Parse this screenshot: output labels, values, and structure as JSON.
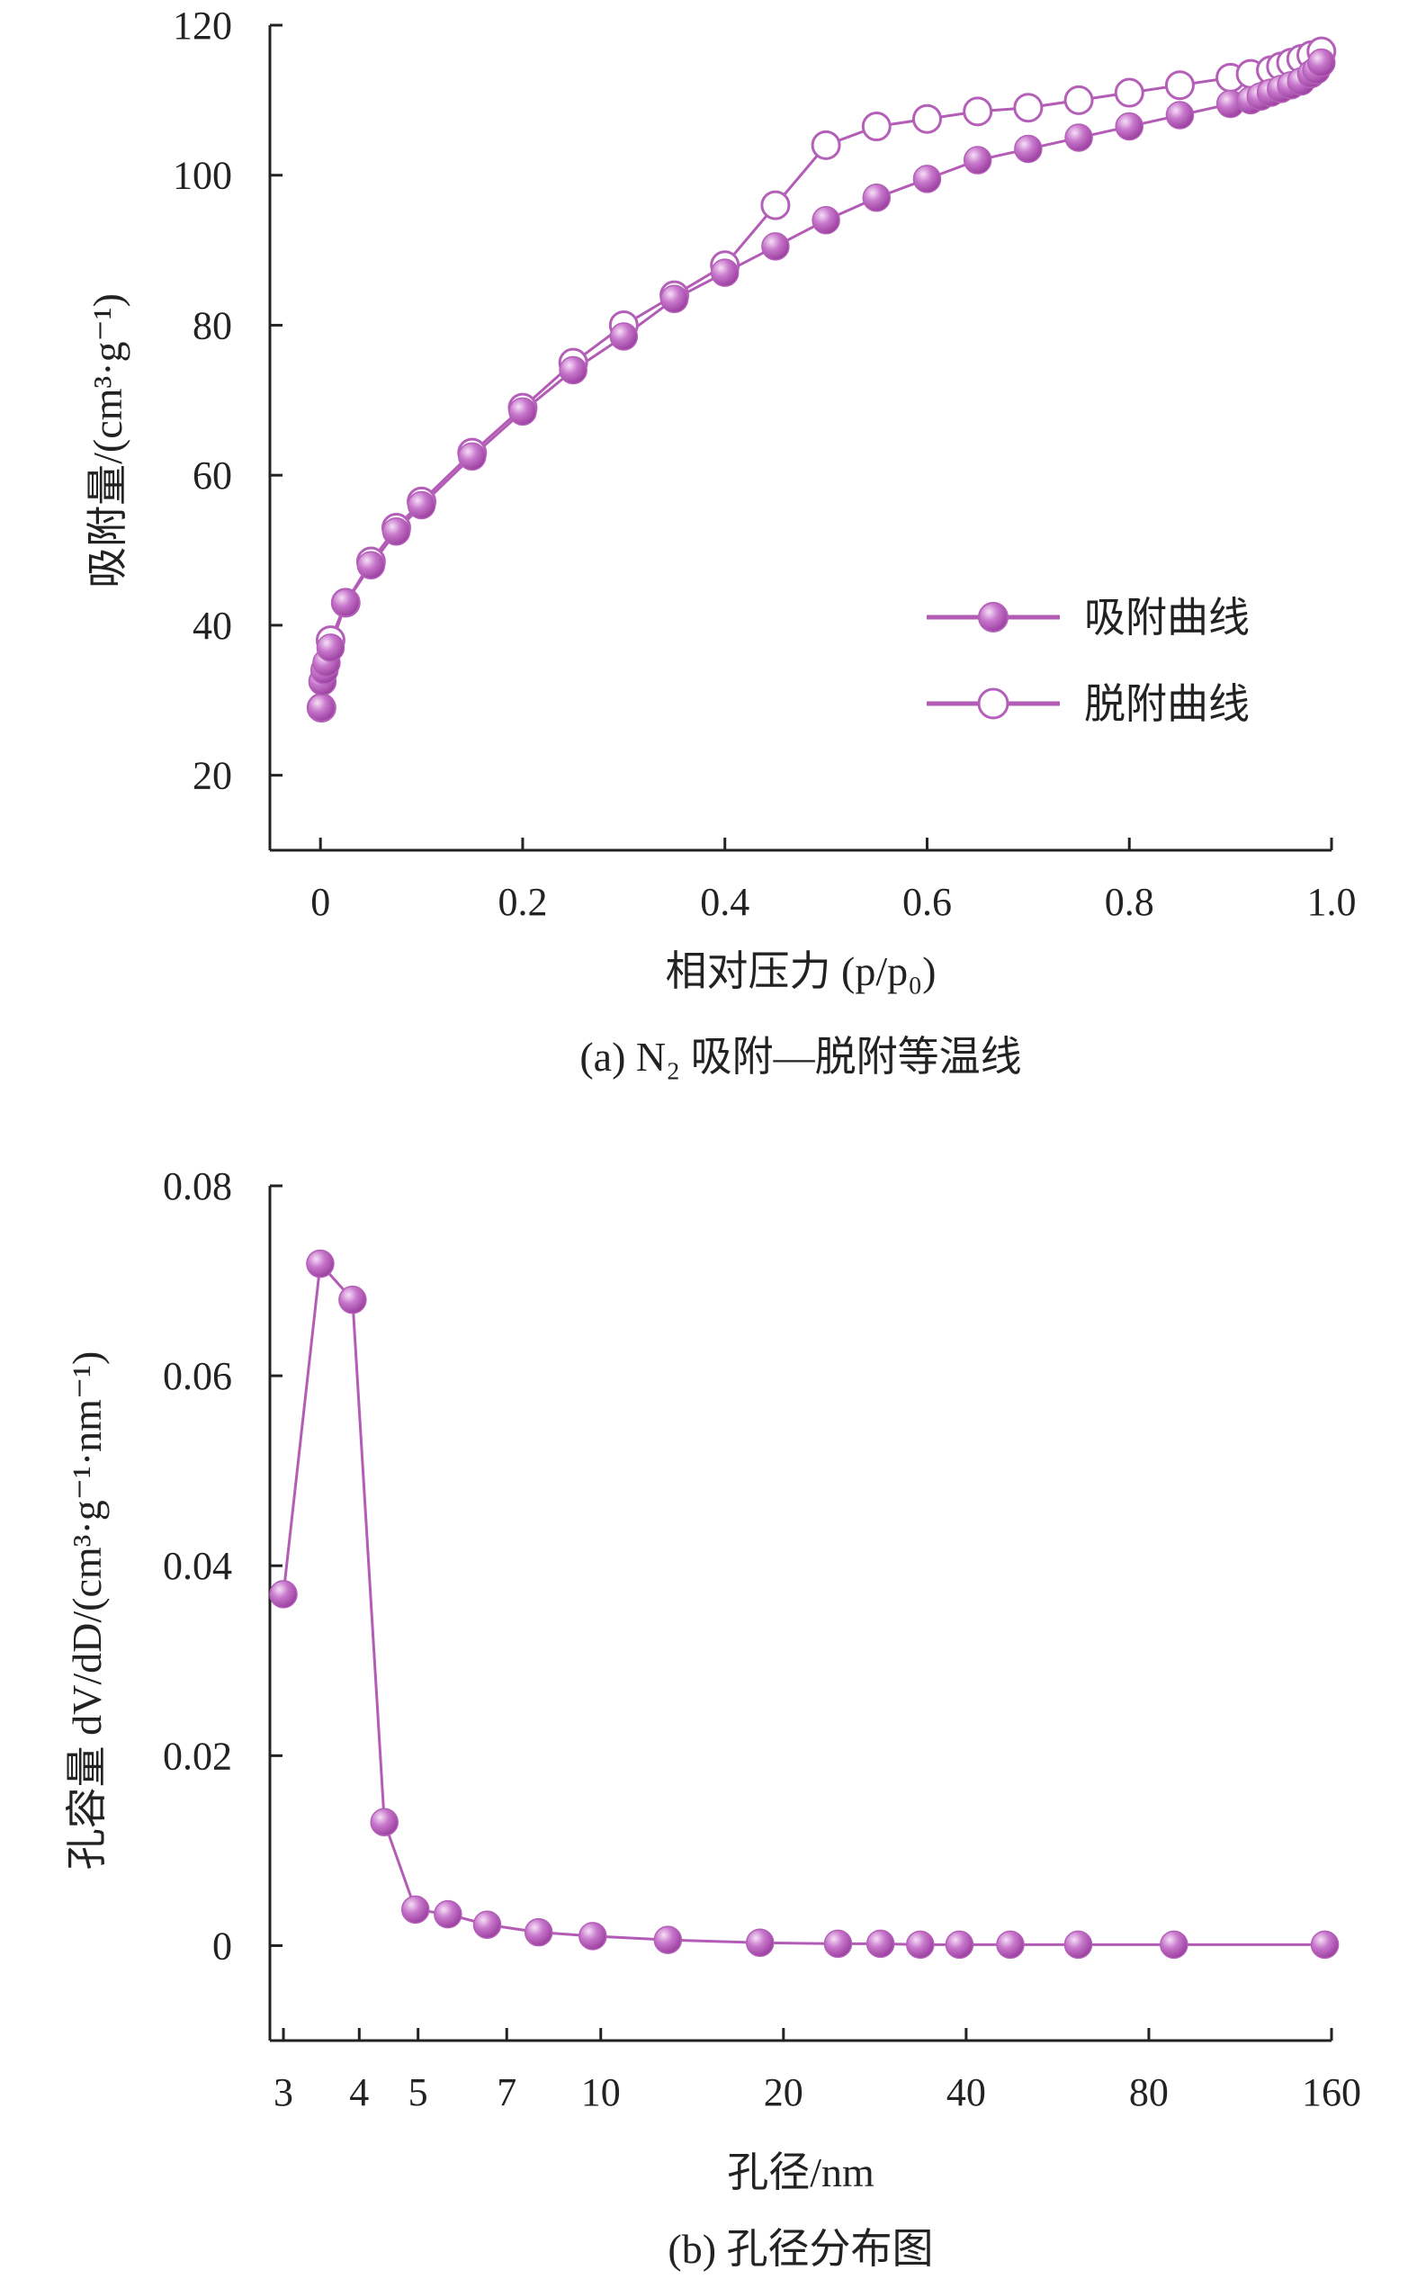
{
  "colors": {
    "series": "#b460b8",
    "series_line": "#b35cb6",
    "marker_dark": "#9b3fa0",
    "marker_mid": "#c878cc",
    "marker_light": "#f6dff7",
    "axis": "#222222"
  },
  "chart_data": [
    {
      "type": "line",
      "caption": "(a) N₂ 吸附—脱附等温线",
      "xlabel": "相对压力 (p/p₀)",
      "ylabel": "吸附量/(cm³·g⁻¹)",
      "xlim": [
        -0.05,
        1.0
      ],
      "ylim": [
        10,
        120
      ],
      "xticks": [
        0,
        0.2,
        0.4,
        0.6,
        0.8,
        1.0
      ],
      "xtick_labels": [
        "0",
        "0.2",
        "0.4",
        "0.6",
        "0.8",
        "1.0"
      ],
      "yticks": [
        20,
        40,
        60,
        80,
        100,
        120
      ],
      "ytick_labels": [
        "20",
        "40",
        "60",
        "80",
        "100",
        "120"
      ],
      "legend_position": "lower-right",
      "series": [
        {
          "name": "吸附曲线",
          "marker": "filled-sphere",
          "x": [
            0.001,
            0.002,
            0.004,
            0.006,
            0.01,
            0.025,
            0.05,
            0.075,
            0.1,
            0.15,
            0.2,
            0.25,
            0.3,
            0.35,
            0.4,
            0.45,
            0.5,
            0.55,
            0.6,
            0.65,
            0.7,
            0.75,
            0.8,
            0.85,
            0.9,
            0.92,
            0.93,
            0.94,
            0.95,
            0.96,
            0.97,
            0.98,
            0.985,
            0.99
          ],
          "y": [
            29,
            32.5,
            34,
            35,
            37,
            43,
            48,
            52.5,
            56,
            62.5,
            68.5,
            74,
            78.5,
            83.5,
            87,
            90.5,
            94,
            97,
            99.5,
            102,
            103.5,
            105,
            106.5,
            108,
            109.5,
            110,
            110.5,
            111,
            111.5,
            112,
            112.5,
            113.5,
            114,
            115
          ]
        },
        {
          "name": "脱附曲线",
          "marker": "open-circle",
          "x": [
            0.001,
            0.01,
            0.025,
            0.05,
            0.075,
            0.1,
            0.15,
            0.2,
            0.25,
            0.3,
            0.35,
            0.4,
            0.45,
            0.5,
            0.55,
            0.6,
            0.65,
            0.7,
            0.75,
            0.8,
            0.85,
            0.9,
            0.92,
            0.94,
            0.95,
            0.96,
            0.97,
            0.98,
            0.99
          ],
          "y": [
            29,
            38,
            43,
            48.5,
            53,
            56.5,
            63,
            69,
            75,
            80,
            84,
            88,
            96,
            104,
            106.5,
            107.5,
            108.5,
            109,
            110,
            111,
            112,
            113,
            113.5,
            114,
            114.5,
            115,
            115.5,
            116,
            116.5
          ]
        }
      ]
    },
    {
      "type": "line",
      "caption": "(b) 孔径分布图",
      "xlabel": "孔径/nm",
      "ylabel": "孔容量 dV/dD/(cm³·g⁻¹·nm⁻¹)",
      "xscale": "log2",
      "xlim": [
        2.85,
        160
      ],
      "ylim": [
        -0.01,
        0.08
      ],
      "xticks": [
        3,
        4,
        5,
        7,
        10,
        20,
        40,
        80,
        160
      ],
      "xtick_labels": [
        "3",
        "4",
        "5",
        "7",
        "10",
        "20",
        "40",
        "80",
        "160"
      ],
      "yticks": [
        0,
        0.02,
        0.04,
        0.06,
        0.08
      ],
      "ytick_labels": [
        "0",
        "0.02",
        "0.04",
        "0.06",
        "0.08"
      ],
      "series": [
        {
          "name": "孔径分布",
          "marker": "filled-sphere",
          "x": [
            3.0,
            3.45,
            3.9,
            4.4,
            4.95,
            5.6,
            6.5,
            7.9,
            9.7,
            12.9,
            18.3,
            24.6,
            28.9,
            33.6,
            39.0,
            47.3,
            61.2,
            88.0,
            156.0
          ],
          "y": [
            0.037,
            0.0718,
            0.068,
            0.013,
            0.0038,
            0.0033,
            0.0022,
            0.0014,
            0.001,
            0.0006,
            0.0003,
            0.0002,
            0.0002,
            0.0001,
            0.0001,
            0.0001,
            0.0001,
            0.0001,
            0.0001
          ]
        }
      ]
    }
  ]
}
